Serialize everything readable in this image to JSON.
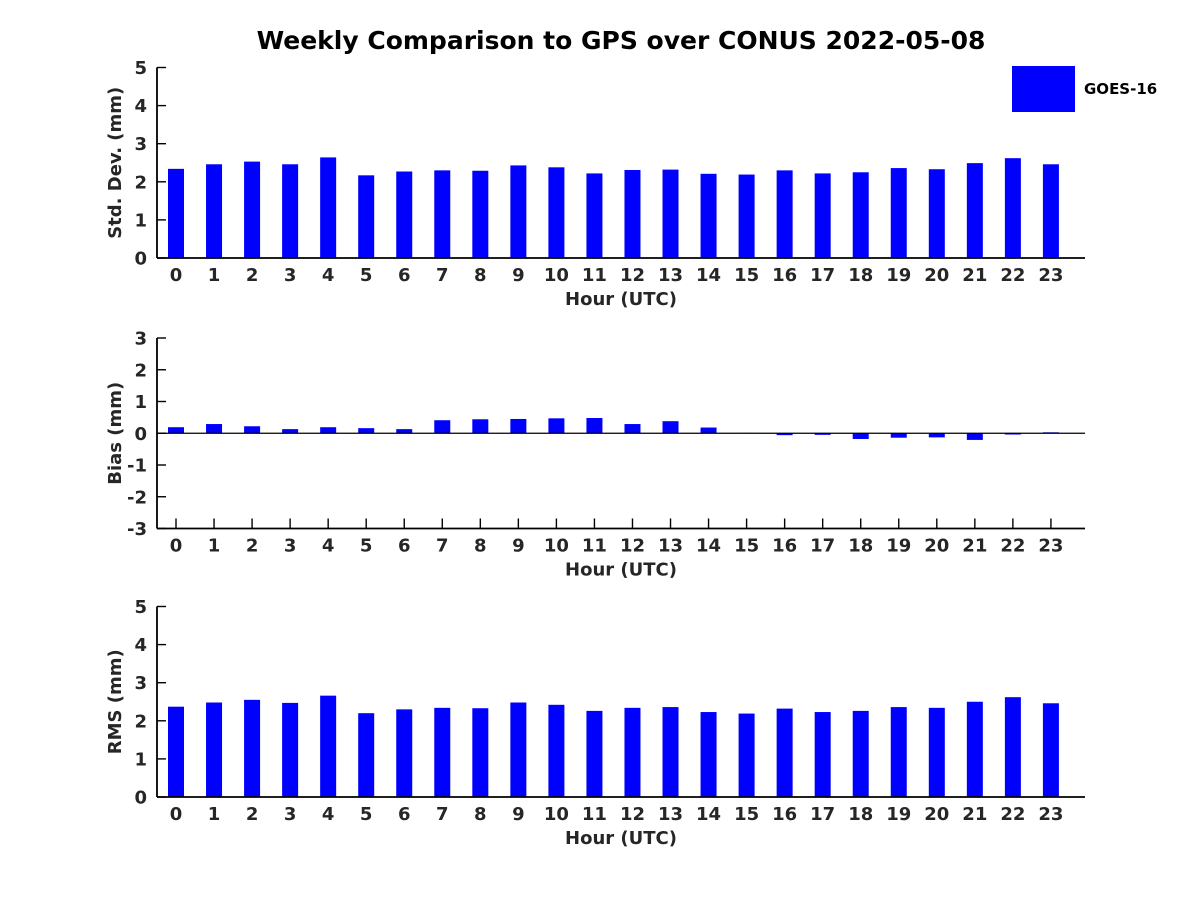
{
  "title": "Weekly Comparison to GPS over CONUS 2022-05-08",
  "legend": {
    "label": "GOES-16",
    "color": "#0000ff",
    "position": "top-right"
  },
  "colors": {
    "bar": "#0000ff",
    "axis": "#000000",
    "tick_text": "#262626",
    "background": "#ffffff"
  },
  "chart_data": [
    {
      "type": "bar",
      "id": "std-dev",
      "title": "",
      "xlabel": "Hour (UTC)",
      "ylabel": "Std. Dev. (mm)",
      "ylim": [
        0,
        5
      ],
      "yticks": [
        0,
        1,
        2,
        3,
        4,
        5
      ],
      "grid": false,
      "categories": [
        "0",
        "1",
        "2",
        "3",
        "4",
        "5",
        "6",
        "7",
        "8",
        "9",
        "10",
        "11",
        "12",
        "13",
        "14",
        "15",
        "16",
        "17",
        "18",
        "19",
        "20",
        "21",
        "22",
        "23"
      ],
      "series": [
        {
          "name": "GOES-16",
          "values": [
            2.34,
            2.46,
            2.53,
            2.46,
            2.64,
            2.17,
            2.27,
            2.3,
            2.29,
            2.43,
            2.38,
            2.22,
            2.31,
            2.32,
            2.21,
            2.19,
            2.3,
            2.22,
            2.25,
            2.36,
            2.33,
            2.49,
            2.62,
            2.46
          ]
        }
      ]
    },
    {
      "type": "bar",
      "id": "bias",
      "title": "",
      "xlabel": "Hour (UTC)",
      "ylabel": "Bias (mm)",
      "ylim": [
        -3,
        3
      ],
      "yticks": [
        -3,
        -2,
        -1,
        0,
        1,
        2,
        3
      ],
      "grid": false,
      "categories": [
        "0",
        "1",
        "2",
        "3",
        "4",
        "5",
        "6",
        "7",
        "8",
        "9",
        "10",
        "11",
        "12",
        "13",
        "14",
        "15",
        "16",
        "17",
        "18",
        "19",
        "20",
        "21",
        "22",
        "23"
      ],
      "series": [
        {
          "name": "GOES-16",
          "values": [
            0.19,
            0.29,
            0.22,
            0.13,
            0.19,
            0.16,
            0.13,
            0.41,
            0.44,
            0.45,
            0.47,
            0.48,
            0.29,
            0.38,
            0.18,
            0.01,
            -0.06,
            -0.05,
            -0.18,
            -0.14,
            -0.13,
            -0.21,
            -0.04,
            0.03
          ]
        }
      ]
    },
    {
      "type": "bar",
      "id": "rms",
      "title": "",
      "xlabel": "Hour (UTC)",
      "ylabel": "RMS (mm)",
      "ylim": [
        0,
        5
      ],
      "yticks": [
        0,
        1,
        2,
        3,
        4,
        5
      ],
      "grid": false,
      "categories": [
        "0",
        "1",
        "2",
        "3",
        "4",
        "5",
        "6",
        "7",
        "8",
        "9",
        "10",
        "11",
        "12",
        "13",
        "14",
        "15",
        "16",
        "17",
        "18",
        "19",
        "20",
        "21",
        "22",
        "23"
      ],
      "series": [
        {
          "name": "GOES-16",
          "values": [
            2.37,
            2.48,
            2.55,
            2.47,
            2.66,
            2.2,
            2.3,
            2.34,
            2.33,
            2.48,
            2.42,
            2.26,
            2.34,
            2.36,
            2.23,
            2.19,
            2.32,
            2.23,
            2.26,
            2.36,
            2.34,
            2.5,
            2.62,
            2.46
          ]
        }
      ]
    }
  ]
}
